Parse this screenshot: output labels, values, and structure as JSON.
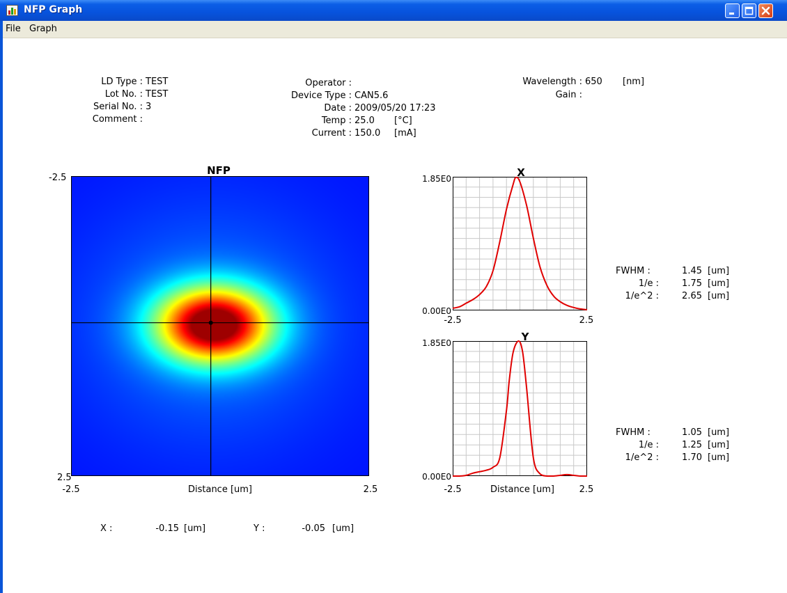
{
  "window": {
    "title": "NFP Graph",
    "app_icon": "graph-app-icon"
  },
  "menu": [
    {
      "label": "File"
    },
    {
      "label": "Graph"
    }
  ],
  "info": {
    "ld_type_label": "LD Type :",
    "ld_type": "TEST",
    "lot_no_label": "Lot No. :",
    "lot_no": "TEST",
    "serial_no_label": "Serial No. :",
    "serial_no": "3",
    "comment_label": "Comment :",
    "comment": "",
    "operator_label": "Operator :",
    "operator": "",
    "device_type_label": "Device Type :",
    "device_type": "CAN5.6",
    "date_label": "Date :",
    "date": "2009/05/20 17:23",
    "temp_label": "Temp :",
    "temp": "25.0",
    "temp_unit": "[°C]",
    "current_label": "Current :",
    "current": "150.0",
    "current_unit": "[mA]",
    "wavelength_label": "Wavelength :",
    "wavelength": "650",
    "wavelength_unit": "[nm]",
    "gain_label": "Gain :",
    "gain": ""
  },
  "nfp": {
    "title": "NFP",
    "xlabel": "Distance [um]",
    "x_ticks": [
      "-2.5",
      "2.5"
    ],
    "y_ticks": [
      "-2.5",
      "2.5"
    ],
    "cursor": {
      "x": -0.15,
      "y": -0.05
    }
  },
  "profile_x": {
    "title": "X",
    "y_top": "1.85E0",
    "y_bottom": "0.00E0",
    "x_ticks": [
      "-2.5",
      "2.5"
    ],
    "xlabel": "",
    "fwhm_label": "FWHM :",
    "fwhm": "1.45",
    "e1_label": "1/e :",
    "e1": "1.75",
    "e2_label": "1/e^2 :",
    "e2": "2.65",
    "unit": "[um]"
  },
  "profile_y": {
    "title": "Y",
    "y_top": "1.85E0",
    "y_bottom": "0.00E0",
    "x_ticks": [
      "-2.5",
      "2.5"
    ],
    "xlabel": "Distance [um]",
    "fwhm_label": "FWHM :",
    "fwhm": "1.05",
    "e1_label": "1/e :",
    "e1": "1.25",
    "e2_label": "1/e^2 :",
    "e2": "1.70",
    "unit": "[um]"
  },
  "cursor_readout": {
    "x_label": "X :",
    "x_value": "-0.15",
    "y_label": "Y :",
    "y_value": "-0.05",
    "unit": "[um]"
  },
  "colors": {
    "curve": "#e00000",
    "grid": "#c8c8c8",
    "titlebar": "#0a55d8"
  },
  "chart_data": [
    {
      "type": "line",
      "title": "X",
      "x": [
        -2.5,
        -2.25,
        -2.0,
        -1.75,
        -1.5,
        -1.25,
        -1.0,
        -0.75,
        -0.5,
        -0.25,
        -0.15,
        0.0,
        0.25,
        0.5,
        0.75,
        1.0,
        1.25,
        1.5,
        1.75,
        2.0,
        2.25,
        2.5
      ],
      "series": [
        {
          "values": [
            0.03,
            0.05,
            0.1,
            0.15,
            0.22,
            0.33,
            0.55,
            0.95,
            1.4,
            1.75,
            1.84,
            1.78,
            1.45,
            1.0,
            0.6,
            0.35,
            0.2,
            0.12,
            0.07,
            0.04,
            0.02,
            0.01
          ]
        }
      ],
      "xlim": [
        -2.5,
        2.5
      ],
      "ylim": [
        0,
        1.85
      ],
      "grid": true
    },
    {
      "type": "line",
      "title": "Y",
      "x": [
        -2.5,
        -2.25,
        -2.0,
        -1.75,
        -1.5,
        -1.25,
        -1.0,
        -0.75,
        -0.5,
        -0.4,
        -0.25,
        -0.05,
        0.1,
        0.25,
        0.5,
        0.75,
        1.0,
        1.25,
        1.5,
        1.75,
        2.0,
        2.25,
        2.5
      ],
      "series": [
        {
          "values": [
            0.0,
            0.0,
            0.01,
            0.04,
            0.06,
            0.08,
            0.12,
            0.25,
            0.9,
            1.3,
            1.7,
            1.85,
            1.7,
            1.2,
            0.25,
            0.03,
            0.0,
            0.0,
            0.01,
            0.02,
            0.01,
            0.0,
            0.0
          ]
        }
      ],
      "xlim": [
        -2.5,
        2.5
      ],
      "ylim": [
        0,
        1.85
      ],
      "xlabel": "Distance [um]",
      "grid": true
    }
  ]
}
